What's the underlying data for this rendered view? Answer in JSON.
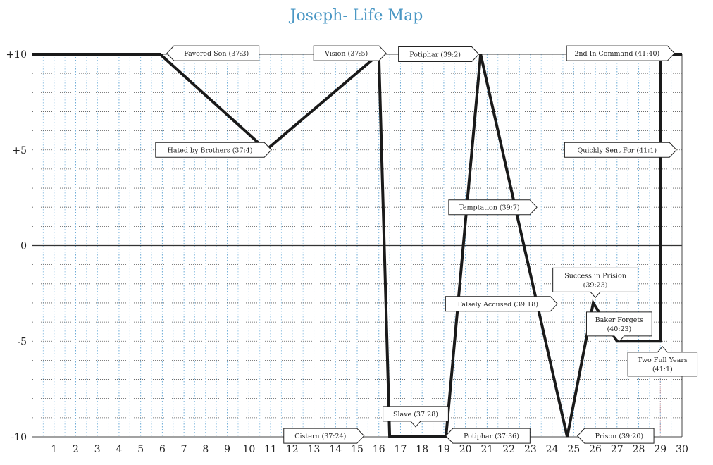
{
  "chart_data": {
    "type": "line",
    "title": "Joseph- Life Map",
    "xlabel": "",
    "ylabel": "",
    "xlim": [
      0,
      30
    ],
    "ylim": [
      -10,
      10
    ],
    "x_ticks": [
      1,
      2,
      3,
      4,
      5,
      6,
      7,
      8,
      9,
      10,
      11,
      12,
      13,
      14,
      15,
      16,
      17,
      18,
      19,
      20,
      21,
      22,
      23,
      24,
      25,
      26,
      27,
      28,
      29,
      30
    ],
    "y_ticks": [
      {
        "value": 10,
        "label": "+10"
      },
      {
        "value": 5,
        "label": "+5"
      },
      {
        "value": 0,
        "label": "0"
      },
      {
        "value": -5,
        "label": "-5"
      },
      {
        "value": -10,
        "label": "-10"
      }
    ],
    "grid": true,
    "series": [
      {
        "x": [
          0,
          5.9,
          10.8,
          16.0,
          16.5,
          19.1,
          20.7,
          24.7,
          25.9,
          27.0,
          29.0,
          29.0,
          30.0
        ],
        "y": [
          10,
          10,
          5,
          10,
          -10,
          -10,
          10,
          -10,
          -3,
          -5,
          -5,
          10,
          10
        ]
      }
    ],
    "annotations": [
      {
        "lines": [
          "Favored Son (37:3)"
        ],
        "x": 8.5,
        "y": 10.05,
        "shape": "arrow-left"
      },
      {
        "lines": [
          "Vision (37:5)"
        ],
        "x": 14.5,
        "y": 10.05,
        "shape": "arrow-right"
      },
      {
        "lines": [
          "Potiphar (39:2)"
        ],
        "x": 18.6,
        "y": 10.0,
        "shape": "arrow-right"
      },
      {
        "lines": [
          "2nd In Command (41:40)"
        ],
        "x": 27.0,
        "y": 10.05,
        "shape": "arrow-right"
      },
      {
        "lines": [
          "Hated by Brothers (37:4)"
        ],
        "x": 8.2,
        "y": 5.0,
        "shape": "arrow-right"
      },
      {
        "lines": [
          "Quickly Sent For (41:1)"
        ],
        "x": 27.0,
        "y": 5.0,
        "shape": "arrow-right"
      },
      {
        "lines": [
          "Temptation (39:7)"
        ],
        "x": 21.1,
        "y": 2.0,
        "shape": "arrow-right"
      },
      {
        "lines": [
          "Falsely Accused (39:18)"
        ],
        "x": 21.5,
        "y": -3.05,
        "shape": "arrow-right"
      },
      {
        "lines": [
          "Success in Prision",
          "(39:23)"
        ],
        "x": 26.0,
        "y": -1.8,
        "shape": "arrow-down"
      },
      {
        "lines": [
          "Baker Forgets",
          "(40:23)"
        ],
        "x": 27.1,
        "y": -4.1,
        "shape": "arrow-down"
      },
      {
        "lines": [
          "Two Full Years",
          "(41:1)"
        ],
        "x": 29.1,
        "y": -6.2,
        "shape": "arrow-up"
      },
      {
        "lines": [
          "Slave (37:28)"
        ],
        "x": 17.7,
        "y": -8.8,
        "shape": "arrow-down"
      },
      {
        "lines": [
          "Cistern (37:24)"
        ],
        "x": 13.3,
        "y": -9.95,
        "shape": "arrow-right"
      },
      {
        "lines": [
          "Potiphar (37:36)"
        ],
        "x": 21.2,
        "y": -9.95,
        "shape": "arrow-left"
      },
      {
        "lines": [
          "Prison (39:20)"
        ],
        "x": 27.1,
        "y": -9.95,
        "shape": "arrow-left"
      }
    ],
    "colors": {
      "line": "#1a1a1a",
      "title": "#4a97c4",
      "grid_minor": "#7fb6dc"
    }
  }
}
